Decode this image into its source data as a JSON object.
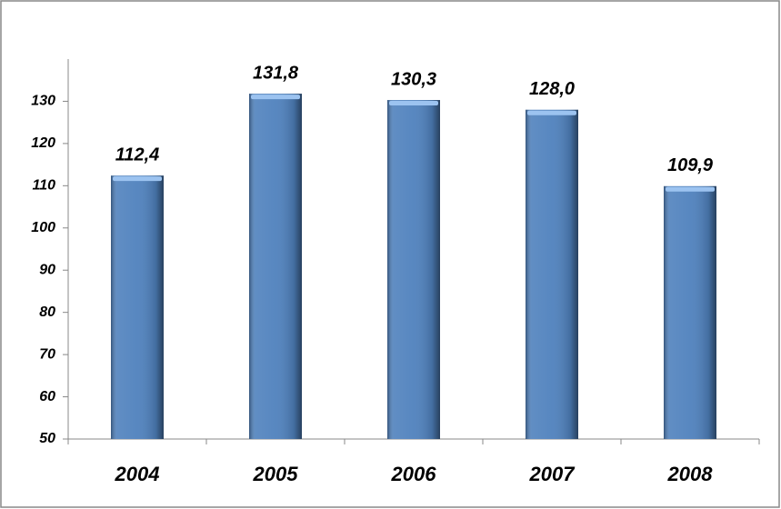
{
  "chart_data": {
    "type": "bar",
    "categories": [
      "2004",
      "2005",
      "2006",
      "2007",
      "2008"
    ],
    "values": [
      112.4,
      131.8,
      130.3,
      128.0,
      109.9
    ],
    "value_labels": [
      "112,4",
      "131,8",
      "130,3",
      "128,0",
      "109,9"
    ],
    "color": "#4f81bd",
    "ylim": [
      50,
      140
    ],
    "yticks": [
      50,
      60,
      70,
      80,
      90,
      100,
      110,
      120,
      130
    ]
  }
}
